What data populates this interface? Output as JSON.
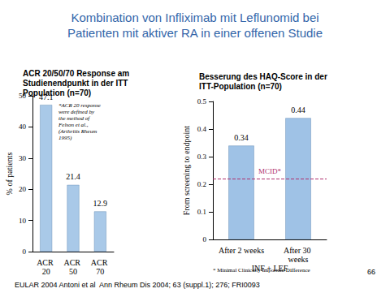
{
  "title_lines": [
    "Kombination von Infliximab mit Leflunomid bei",
    "Patienten mit aktiver RA in einer offenen Studie"
  ],
  "citation": "EULAR 2004 Antoni et al  Ann Rheum Dis 2004; 63 (suppl.1); 276; FRI0093",
  "page_number": "66",
  "chart_data": [
    {
      "type": "bar",
      "title": "ACR 20/50/70 Response am Studienendpunkt in der ITT Population (n=70)",
      "categories": [
        "ACR 20",
        "ACR 50",
        "ACR 70"
      ],
      "values": [
        47.1,
        21.4,
        12.9
      ],
      "color": "#a9c9e8",
      "ylim": [
        0,
        50
      ],
      "yticks": [
        0,
        10,
        20,
        30,
        40,
        50
      ],
      "y_label": "% of patients",
      "grid": false,
      "data_labels": true,
      "annotation": "*ACR 20 response were defined by the method of Felson et al., (Arthritis Rheum 1995)"
    },
    {
      "type": "bar",
      "title": "Besserung des HAQ-Score in der ITT-Population (n=70)",
      "categories": [
        "After 2 weeks",
        "After 30 weeks"
      ],
      "values": [
        0.34,
        0.44
      ],
      "color": "#9fc2e6",
      "ylim": [
        0,
        0.5
      ],
      "yticks": [
        0,
        0.1,
        0.2,
        0.3,
        0.4,
        0.5
      ],
      "y_label": "From screening to endpoint",
      "x_label": "INF + LEF",
      "grid": false,
      "data_labels": true,
      "reference_line": {
        "value": 0.22,
        "label": "MCID*",
        "color": "#b0306e",
        "line_style": "dashed"
      },
      "footnote": "* Minimal Clinically Important Difference"
    }
  ]
}
